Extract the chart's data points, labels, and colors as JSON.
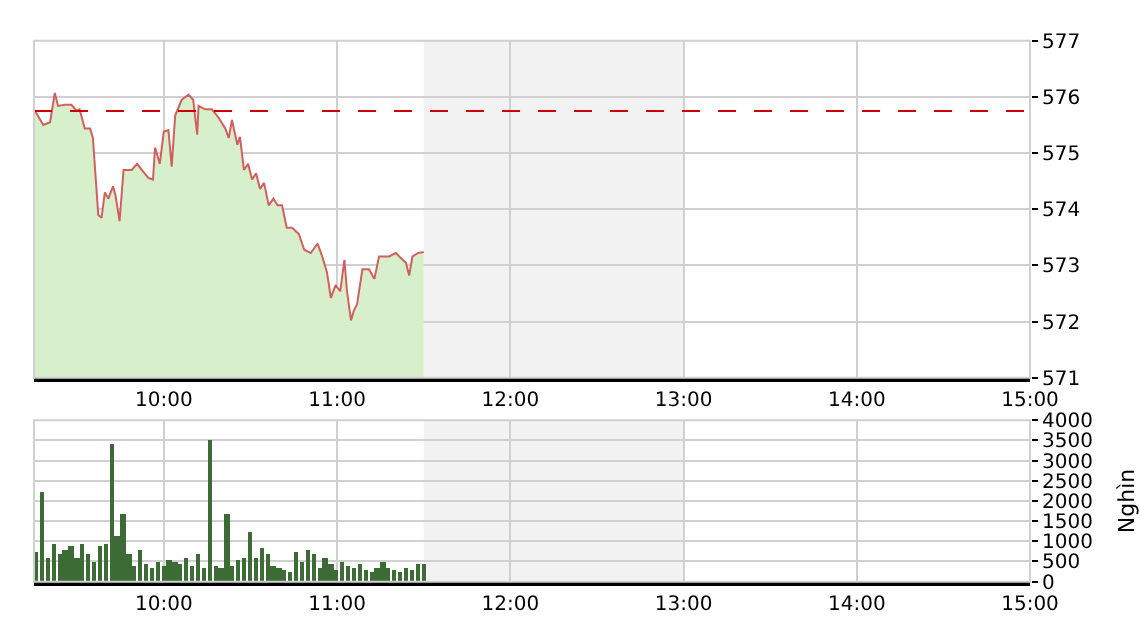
{
  "chart_data": [
    {
      "type": "area",
      "x": [
        9.25,
        9.304,
        9.343,
        9.37,
        9.389,
        9.428,
        9.466,
        9.497,
        9.513,
        9.543,
        9.574,
        9.59,
        9.621,
        9.64,
        9.659,
        9.679,
        9.706,
        9.721,
        9.744,
        9.767,
        9.814,
        9.845,
        9.872,
        9.91,
        9.937,
        9.949,
        9.976,
        9.999,
        10.026,
        10.045,
        10.065,
        10.103,
        10.142,
        10.169,
        10.192,
        10.2,
        10.238,
        10.277,
        10.316,
        10.354,
        10.374,
        10.393,
        10.424,
        10.439,
        10.462,
        10.486,
        10.509,
        10.532,
        10.555,
        10.578,
        10.605,
        10.632,
        10.656,
        10.682,
        10.709,
        10.74,
        10.779,
        10.81,
        10.848,
        10.887,
        10.914,
        10.941,
        10.964,
        10.991,
        11.018,
        11.042,
        11.057,
        11.08,
        11.096,
        11.115,
        11.146,
        11.184,
        11.215,
        11.242,
        11.3,
        11.339,
        11.378,
        11.397,
        11.416,
        11.435,
        11.466,
        11.5
      ],
      "series": [
        {
          "color": "#d8efcc",
          "values": [
            575.78,
            575.5,
            575.55,
            576.07,
            575.84,
            575.86,
            575.86,
            575.75,
            575.78,
            575.44,
            575.44,
            575.27,
            573.9,
            573.85,
            574.3,
            574.19,
            574.41,
            574.24,
            573.79,
            574.7,
            574.7,
            574.81,
            574.7,
            574.56,
            574.53,
            575.1,
            574.81,
            575.38,
            575.41,
            574.76,
            575.67,
            575.95,
            576.04,
            575.95,
            575.33,
            575.84,
            575.78,
            575.78,
            575.63,
            575.44,
            575.27,
            575.59,
            575.15,
            575.29,
            574.7,
            574.81,
            574.53,
            574.64,
            574.36,
            574.47,
            574.07,
            574.19,
            574.07,
            574.07,
            573.67,
            573.67,
            573.56,
            573.28,
            573.22,
            573.39,
            573.16,
            572.88,
            572.42,
            572.65,
            572.54,
            573.1,
            572.54,
            572.02,
            572.19,
            572.31,
            572.93,
            572.93,
            572.76,
            573.16,
            573.16,
            573.22,
            573.1,
            573.05,
            572.82,
            573.16,
            573.22,
            573.24
          ]
        }
      ],
      "xlim": [
        9.25,
        15
      ],
      "xticks": [
        {
          "value": 10,
          "label": "10:00"
        },
        {
          "value": 11,
          "label": "11:00"
        },
        {
          "value": 12,
          "label": "12:00"
        },
        {
          "value": 13,
          "label": "13:00"
        },
        {
          "value": 14,
          "label": "14:00"
        },
        {
          "value": 15,
          "label": "15:00"
        }
      ],
      "ylim": [
        571,
        577
      ],
      "yticks": [
        571,
        572,
        573,
        574,
        575,
        576,
        577
      ],
      "ref_lines": [
        {
          "axis": "y",
          "value": 575.75,
          "color": "#cc0000",
          "line_style": "dashed"
        }
      ],
      "bands": [
        {
          "axis": "x",
          "from": 11.5,
          "to": 13,
          "color": "#f2f2f2"
        }
      ],
      "grid": true
    },
    {
      "type": "bar",
      "x": [
        9.267,
        9.3,
        9.333,
        9.367,
        9.4,
        9.433,
        9.467,
        9.5,
        9.533,
        9.567,
        9.6,
        9.633,
        9.667,
        9.7,
        9.733,
        9.767,
        9.8,
        9.833,
        9.867,
        9.9,
        9.933,
        9.967,
        10.0,
        10.033,
        10.067,
        10.1,
        10.133,
        10.167,
        10.2,
        10.233,
        10.267,
        10.3,
        10.333,
        10.367,
        10.4,
        10.433,
        10.467,
        10.5,
        10.533,
        10.567,
        10.6,
        10.633,
        10.667,
        10.7,
        10.733,
        10.767,
        10.8,
        10.833,
        10.867,
        10.9,
        10.933,
        10.967,
        11.0,
        11.033,
        11.067,
        11.1,
        11.133,
        11.167,
        11.2,
        11.233,
        11.267,
        11.3,
        11.333,
        11.367,
        11.4,
        11.433,
        11.467,
        11.5
      ],
      "series": [
        {
          "color": "#3d6b35",
          "values": [
            720,
            2220,
            600,
            950,
            700,
            800,
            900,
            600,
            950,
            700,
            500,
            900,
            950,
            3420,
            1150,
            1660,
            700,
            400,
            800,
            450,
            350,
            500,
            400,
            550,
            500,
            450,
            600,
            400,
            700,
            350,
            3520,
            400,
            350,
            1660,
            400,
            550,
            600,
            1230,
            600,
            850,
            700,
            400,
            350,
            300,
            250,
            750,
            500,
            800,
            700,
            350,
            600,
            450,
            300,
            500,
            400,
            350,
            450,
            300,
            250,
            350,
            500,
            350,
            300,
            250,
            350,
            300,
            450,
            450
          ]
        }
      ],
      "xlim": [
        9.25,
        15
      ],
      "xticks": [
        {
          "value": 10,
          "label": "10:00"
        },
        {
          "value": 11,
          "label": "11:00"
        },
        {
          "value": 12,
          "label": "12:00"
        },
        {
          "value": 13,
          "label": "13:00"
        },
        {
          "value": 14,
          "label": "14:00"
        },
        {
          "value": 15,
          "label": "15:00"
        }
      ],
      "ylim": [
        0,
        4000
      ],
      "yticks": [
        0,
        500,
        1000,
        1500,
        2000,
        2500,
        3000,
        3500,
        4000
      ],
      "ylabel": "Nghìn",
      "bands": [
        {
          "axis": "x",
          "from": 11.5,
          "to": 13,
          "color": "#f2f2f2"
        }
      ],
      "grid": true
    }
  ]
}
